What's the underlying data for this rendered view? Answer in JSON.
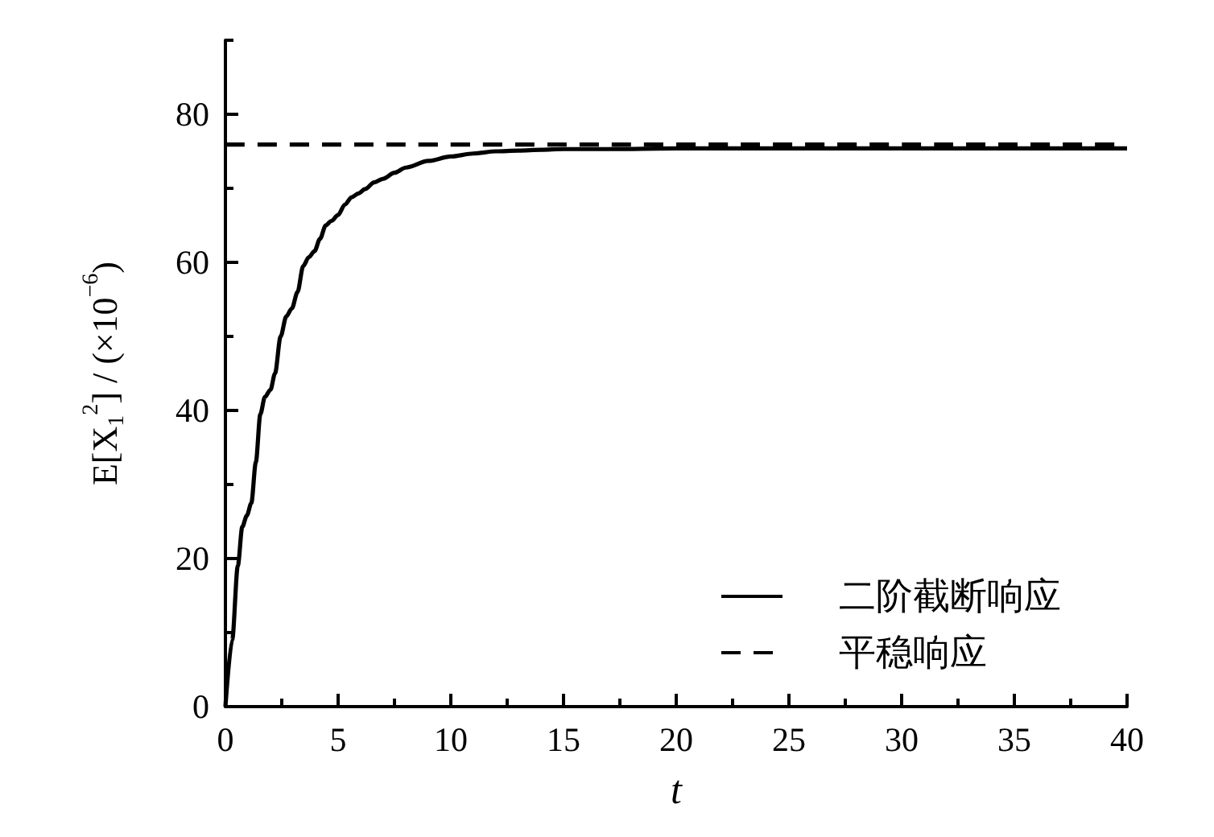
{
  "chart_data": {
    "type": "line",
    "xlabel": "t",
    "ylabel": "E[X$_{1}$$^{2}$] / (×10$^{−6}$)",
    "xlim": [
      0,
      40
    ],
    "xticks": [
      0,
      {
        "value": 2.5,
        "label": null
      },
      5,
      {
        "value": 7.5,
        "label": null
      },
      10,
      {
        "value": 12.5,
        "label": null
      },
      15,
      {
        "value": 17.5,
        "label": null
      },
      20,
      {
        "value": 22.5,
        "label": null
      },
      25,
      {
        "value": 27.5,
        "label": null
      },
      30,
      {
        "value": 32.5,
        "label": null
      },
      35,
      {
        "value": 37.5,
        "label": null
      },
      40
    ],
    "ylim": [
      0,
      90
    ],
    "yticks": [
      0,
      {
        "value": 10,
        "label": null
      },
      20,
      {
        "value": 30,
        "label": null
      },
      40,
      {
        "value": 50,
        "label": null
      },
      60,
      {
        "value": 70,
        "label": null
      },
      80,
      {
        "value": 90,
        "label": null
      }
    ],
    "series": [
      {
        "name": "二阶截断响应",
        "color": "#000000",
        "line_style": "solid",
        "x": [
          0,
          0.3,
          0.55,
          0.75,
          0.95,
          1.15,
          1.35,
          1.55,
          1.75,
          2.0,
          2.2,
          2.45,
          2.7,
          2.95,
          3.2,
          3.45,
          3.7,
          3.95,
          4.2,
          4.45,
          4.7,
          5.0,
          5.3,
          5.6,
          5.9,
          6.2,
          6.6,
          7.0,
          7.5,
          8,
          9,
          10,
          11,
          12,
          13,
          14,
          15,
          17,
          20,
          25,
          30,
          35,
          40
        ],
        "values": [
          0,
          9,
          19,
          24.3,
          25.8,
          27.5,
          33,
          39.5,
          41.8,
          42.8,
          45,
          50,
          52.7,
          53.8,
          56,
          59.5,
          60.7,
          61.5,
          63.2,
          65,
          65.6,
          66.4,
          67.8,
          68.8,
          69.3,
          69.9,
          70.8,
          71.3,
          72.1,
          72.8,
          73.7,
          74.3,
          74.7,
          75.0,
          75.1,
          75.2,
          75.3,
          75.3,
          75.4,
          75.4,
          75.4,
          75.4,
          75.4
        ]
      },
      {
        "name": "平稳响应",
        "color": "#000000",
        "line_style": "dashed",
        "x": [
          0,
          40
        ],
        "values": [
          75.9,
          75.9
        ]
      }
    ],
    "marker": "none",
    "legend": "bottom right",
    "grid": false
  }
}
